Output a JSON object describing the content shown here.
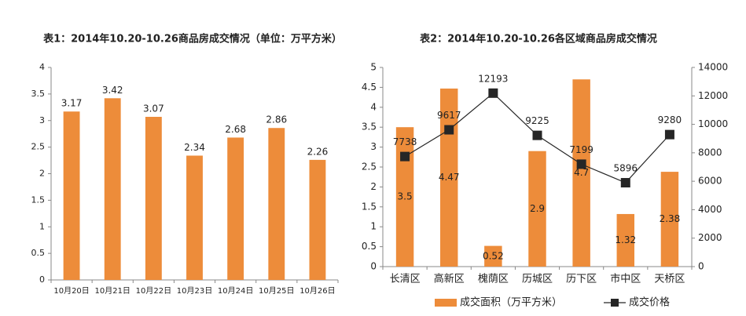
{
  "chart_data": [
    {
      "type": "bar",
      "title": "表1：2014年10.20-10.26商品房成交情况（单位：万平方米）",
      "categories": [
        "10月20日",
        "10月21日",
        "10月22日",
        "10月23日",
        "10月24日",
        "10月25日",
        "10月26日"
      ],
      "values": [
        3.17,
        3.42,
        3.07,
        2.34,
        2.68,
        2.86,
        2.26
      ],
      "color": "#ed8c3a",
      "ylim": [
        0,
        4
      ],
      "yticks": [
        0,
        0.5,
        1,
        1.5,
        2,
        2.5,
        3,
        3.5,
        4
      ],
      "grid": false
    },
    {
      "type": "bar",
      "title": "表2：2014年10.20-10.26各区域商品房成交情况",
      "categories": [
        "长清区",
        "高新区",
        "槐荫区",
        "历城区",
        "历下区",
        "市中区",
        "天桥区"
      ],
      "series": [
        {
          "name": "成交面积（万平方米）",
          "type": "bar",
          "color": "#ed8c3a",
          "values": [
            3.5,
            4.47,
            0.52,
            2.9,
            4.7,
            1.32,
            2.38
          ]
        },
        {
          "name": "成交价格",
          "type": "line",
          "axis": "y2",
          "color": "#262626",
          "values": [
            7738,
            9617,
            12193,
            9225,
            7199,
            5896,
            9280
          ]
        }
      ],
      "ylim": [
        0,
        5
      ],
      "yticks": [
        0,
        0.5,
        1,
        1.5,
        2,
        2.5,
        3,
        3.5,
        4,
        4.5,
        5
      ],
      "y2lim": [
        0,
        14000
      ],
      "y2ticks": [
        0,
        2000,
        4000,
        6000,
        8000,
        10000,
        12000,
        14000
      ],
      "grid": false,
      "legend": "bottom"
    }
  ]
}
